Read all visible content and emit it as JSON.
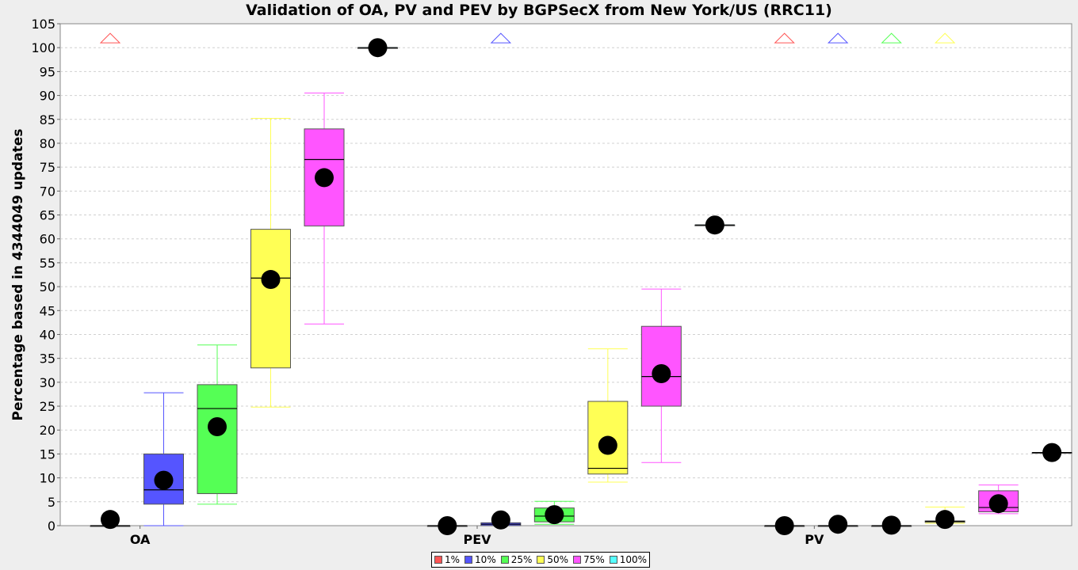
{
  "chart_data": {
    "type": "box",
    "title": "Validation of OA, PV and PEV by BGPSecX from New York/US (RRC11)",
    "ylabel": "Percentage based in 4344049 updates",
    "xlabel": "",
    "ylim": [
      0,
      105
    ],
    "yticks": [
      0,
      5,
      10,
      15,
      20,
      25,
      30,
      35,
      40,
      45,
      50,
      55,
      60,
      65,
      70,
      75,
      80,
      85,
      90,
      95,
      100,
      105
    ],
    "grid": true,
    "legend_position": "bottom-center",
    "categories": [
      "OA",
      "PEV",
      "PV"
    ],
    "series": [
      {
        "name": "1%",
        "color": "#ff5555",
        "boxes": [
          {
            "category": "OA",
            "min": 0,
            "q1": 0,
            "median": 0,
            "q3": 0,
            "max": 0,
            "mean": 1.3,
            "outlier_above": true
          },
          {
            "category": "PEV",
            "min": 0,
            "q1": 0,
            "median": 0,
            "q3": 0,
            "max": 0,
            "mean": 0,
            "outlier_above": false
          },
          {
            "category": "PV",
            "min": 0,
            "q1": 0,
            "median": 0,
            "q3": 0,
            "max": 0,
            "mean": 0,
            "outlier_above": true
          }
        ]
      },
      {
        "name": "10%",
        "color": "#5555ff",
        "boxes": [
          {
            "category": "OA",
            "min": 0,
            "q1": 4.5,
            "median": 7.5,
            "q3": 15,
            "max": 27.8,
            "mean": 9.5,
            "outlier_above": false
          },
          {
            "category": "PEV",
            "min": 0,
            "q1": 0,
            "median": 0.3,
            "q3": 0.6,
            "max": 0.6,
            "mean": 1.2,
            "outlier_above": true
          },
          {
            "category": "PV",
            "min": 0,
            "q1": 0,
            "median": 0,
            "q3": 0,
            "max": 0,
            "mean": 0.3,
            "outlier_above": true
          }
        ]
      },
      {
        "name": "25%",
        "color": "#55ff55",
        "boxes": [
          {
            "category": "OA",
            "min": 4.5,
            "q1": 6.7,
            "median": 24.5,
            "q3": 29.5,
            "max": 37.8,
            "mean": 20.7,
            "outlier_above": false
          },
          {
            "category": "PEV",
            "min": 0.3,
            "q1": 0.8,
            "median": 2,
            "q3": 3.7,
            "max": 5.1,
            "mean": 2.3,
            "outlier_above": false
          },
          {
            "category": "PV",
            "min": 0,
            "q1": 0,
            "median": 0,
            "q3": 0,
            "max": 0,
            "mean": 0.1,
            "outlier_above": true
          }
        ]
      },
      {
        "name": "50%",
        "color": "#ffff55",
        "boxes": [
          {
            "category": "OA",
            "min": 24.8,
            "q1": 33,
            "median": 51.8,
            "q3": 62,
            "max": 85.2,
            "mean": 51.5,
            "outlier_above": false
          },
          {
            "category": "PEV",
            "min": 9.1,
            "q1": 10.8,
            "median": 12,
            "q3": 26,
            "max": 37,
            "mean": 16.8,
            "outlier_above": false
          },
          {
            "category": "PV",
            "min": 0.5,
            "q1": 0.7,
            "median": 0.9,
            "q3": 1,
            "max": 3.9,
            "mean": 1.3,
            "outlier_above": true
          }
        ]
      },
      {
        "name": "75%",
        "color": "#ff55ff",
        "boxes": [
          {
            "category": "OA",
            "min": 42.2,
            "q1": 62.7,
            "median": 76.6,
            "q3": 83,
            "max": 90.5,
            "mean": 72.8,
            "outlier_above": false
          },
          {
            "category": "PEV",
            "min": 13.2,
            "q1": 25,
            "median": 31.2,
            "q3": 41.7,
            "max": 49.5,
            "mean": 31.8,
            "outlier_above": false
          },
          {
            "category": "PV",
            "min": 2.5,
            "q1": 2.9,
            "median": 3.8,
            "q3": 7.3,
            "max": 8.5,
            "mean": 4.6,
            "outlier_above": false
          }
        ]
      },
      {
        "name": "100%",
        "color": "#55ffff",
        "boxes": [
          {
            "category": "OA",
            "min": 100,
            "q1": 100,
            "median": 100,
            "q3": 100,
            "max": 100,
            "mean": 100,
            "outlier_above": false
          },
          {
            "category": "PEV",
            "min": 62.9,
            "q1": 62.9,
            "median": 62.9,
            "q3": 62.9,
            "max": 62.9,
            "mean": 62.9,
            "outlier_above": false
          },
          {
            "category": "PV",
            "min": 15.3,
            "q1": 15.3,
            "median": 15.3,
            "q3": 15.3,
            "max": 15.3,
            "mean": 15.3,
            "outlier_above": false
          }
        ]
      }
    ]
  }
}
